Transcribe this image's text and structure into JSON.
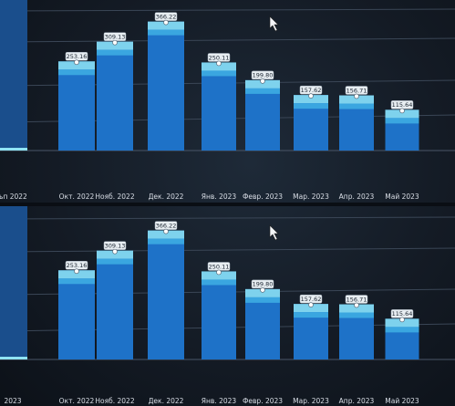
{
  "chart_data": [
    {
      "type": "bar",
      "title": "",
      "xlabel": "",
      "ylabel": "",
      "categories": [
        "ъп 2022",
        "Окт. 2022",
        "Нояб. 2022",
        "Дек. 2022",
        "Янв. 2023",
        "Февр. 2023",
        "Мар. 2023",
        "Апр. 2023",
        "Май 2023"
      ],
      "values": [
        null,
        253.16,
        309.13,
        366.22,
        250.11,
        199.8,
        157.62,
        156.71,
        115.64
      ],
      "data_labels": [
        "",
        "253.16",
        "309.13",
        "366.22",
        "250.11",
        "199.80",
        "157.62",
        "156.71",
        "115.64"
      ],
      "ylim": [
        0,
        400
      ],
      "grid": true,
      "bar_color": "#1e72c8",
      "highlight_color": "#8fe3f3"
    },
    {
      "type": "bar",
      "title": "",
      "xlabel": "",
      "ylabel": "",
      "categories": [
        "2023",
        "Окт. 2022",
        "Нояб. 2022",
        "Дек. 2022",
        "Янв. 2023",
        "Февр. 2023",
        "Мар. 2023",
        "Апр. 2023",
        "Май 2023"
      ],
      "values": [
        null,
        253.16,
        309.13,
        366.22,
        250.11,
        199.8,
        157.62,
        156.71,
        115.64
      ],
      "data_labels": [
        "",
        "253.16",
        "309.13",
        "366.22",
        "250.11",
        "199.80",
        "157.62",
        "156.71",
        "115.64"
      ],
      "ylim": [
        0,
        400
      ],
      "grid": true,
      "bar_color": "#1e72c8",
      "highlight_color": "#8fe3f3"
    }
  ],
  "colors": {
    "grid": "#3a4656",
    "axis": "#4a5668",
    "cut_bar": "#1a4e8c",
    "label_box": "#e8eef2"
  },
  "icons": {
    "cursor": "mouse-pointer-icon"
  }
}
